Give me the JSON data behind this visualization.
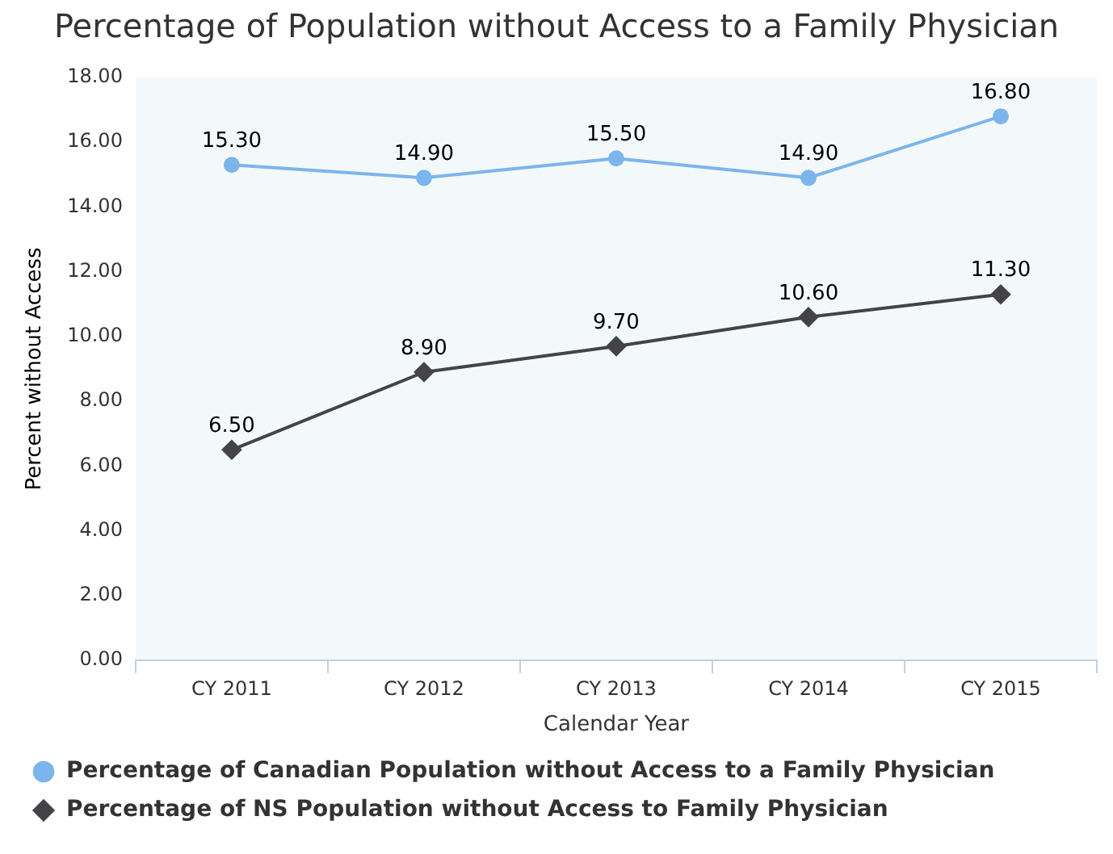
{
  "chart_data": {
    "type": "line",
    "title": "Percentage of Population without Access to a Family Physician",
    "xlabel": "Calendar Year",
    "ylabel": "Percent without Access",
    "categories": [
      "CY 2011",
      "CY 2012",
      "CY 2013",
      "CY 2014",
      "CY 2015"
    ],
    "series": [
      {
        "name": "Percentage of Canadian Population without Access to a Family Physician",
        "color": "#7cb5ec",
        "marker": "circle",
        "values": [
          15.3,
          14.9,
          15.5,
          14.9,
          16.8
        ],
        "value_labels": [
          "15.30",
          "14.90",
          "15.50",
          "14.90",
          "16.80"
        ]
      },
      {
        "name": "Percentage of NS Population without Access to Family Physician",
        "color": "#434348",
        "marker": "diamond",
        "values": [
          6.5,
          8.9,
          9.7,
          10.6,
          11.3
        ],
        "value_labels": [
          "6.50",
          "8.90",
          "9.70",
          "10.60",
          "11.30"
        ]
      }
    ],
    "ylim": [
      0,
      18
    ],
    "yticks": [
      {
        "value": 0,
        "label": "0.00"
      },
      {
        "value": 2,
        "label": "2.00"
      },
      {
        "value": 4,
        "label": "4.00"
      },
      {
        "value": 6,
        "label": "6.00"
      },
      {
        "value": 8,
        "label": "8.00"
      },
      {
        "value": 10,
        "label": "10.00"
      },
      {
        "value": 12,
        "label": "12.00"
      },
      {
        "value": 14,
        "label": "14.00"
      },
      {
        "value": 16,
        "label": "16.00"
      },
      {
        "value": 18,
        "label": "18.00"
      }
    ],
    "grid": false,
    "legend": "bottom left",
    "line_style": "solid"
  }
}
